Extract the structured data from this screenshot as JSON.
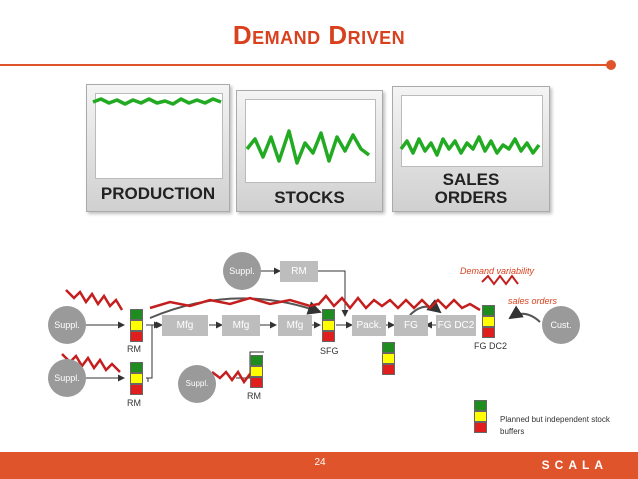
{
  "title": "Demand Driven",
  "panels": [
    {
      "label": "PRODUCTION"
    },
    {
      "label": "STOCKS"
    },
    {
      "label_line1": "SALES",
      "label_line2": "ORDERS"
    }
  ],
  "nodes": {
    "suppl_top": "Suppl.",
    "rm_top": "RM",
    "suppl_left": "Suppl.",
    "suppl_bottom": "Suppl.",
    "suppl_mid": "Suppl.",
    "mfg1": "Mfg",
    "mfg2": "Mfg",
    "mfg3": "Mfg",
    "pack": "Pack.",
    "fg_dc1": "FG DC1",
    "fg_dc2": "FG DC2",
    "cust": "Cust."
  },
  "labels": {
    "rm1": "RM",
    "rm2": "RM",
    "rm3": "RM",
    "sfg": "SFG",
    "fg_dc2": "FG DC2",
    "demand_variability": "Demand variability",
    "sales_orders": "sales orders"
  },
  "legend": {
    "line1": "Planned but independent stock",
    "line2": "buffers"
  },
  "footer": {
    "page": "24",
    "brand": "SCALA"
  },
  "colors": {
    "accent": "#e0542c",
    "wave_green": "#22aa22",
    "wave_red": "#c41e1e",
    "node_gray": "#9a9a9a"
  }
}
